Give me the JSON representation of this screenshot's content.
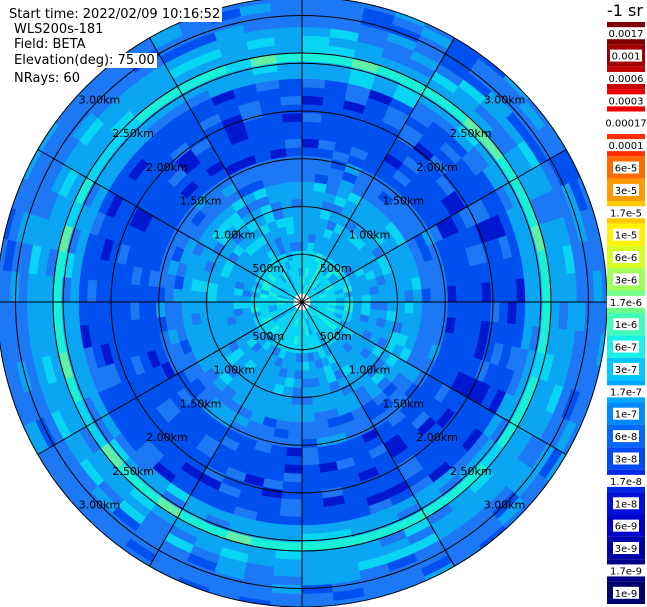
{
  "info": {
    "start_time": "Start time: 2022/02/09 10:16:52",
    "device": "WLS200s-181",
    "field": "Field: BETA",
    "elevation": "Elevation(deg): 75.00",
    "nrays": "NRays: 60"
  },
  "colorbar": {
    "unit": "-1 sr",
    "labels": [
      "0.0017",
      "0.001",
      "0.0006",
      "0.0003",
      "0.00017",
      "0.0001",
      "6e-5",
      "3e-5",
      "1.7e-5",
      "1e-5",
      "6e-6",
      "3e-6",
      "1.7e-6",
      "1e-6",
      "6e-7",
      "3e-7",
      "1.7e-7",
      "1e-7",
      "6e-8",
      "3e-8",
      "1.7e-8",
      "1e-8",
      "6e-9",
      "3e-9",
      "1.7e-9",
      "1e-9"
    ],
    "colors": [
      "#7f0000",
      "#a00000",
      "#c80000",
      "#ee0000",
      "#ffffff",
      "#ff3000",
      "#ff6a00",
      "#ff9a00",
      "#ffc800",
      "#fff200",
      "#d4ff20",
      "#a0ff58",
      "#70ff88",
      "#40ffb8",
      "#18f0e8",
      "#00c8ff",
      "#00a8ff",
      "#0088ff",
      "#0068ff",
      "#0048f8",
      "#0028e8",
      "#0010d8",
      "#0000c8",
      "#0000a8",
      "#000088",
      "#000070"
    ]
  },
  "chart_data": {
    "type": "heatmap",
    "projection": "polar (plan view, scan center at middle)",
    "n_rays": 60,
    "range_rings_km": [
      0.5,
      1.0,
      1.5,
      2.0,
      2.5,
      3.0
    ],
    "range_labels": [
      "500m",
      "1.00km",
      "1.50km",
      "2.00km",
      "2.50km",
      "3.00km"
    ],
    "radial_lines_deg": [
      0,
      30,
      60,
      90,
      120,
      150,
      180,
      210,
      240,
      270,
      300,
      330
    ],
    "field": "BETA",
    "palette": {
      "deep_blue": "#0050f0",
      "mid_blue": "#1c78f4",
      "light_blue": "#0aa6f4",
      "cyan": "#08d4f4",
      "teal": "#18f0d8",
      "green": "#60f0a8",
      "dark_navy": "#0018d0"
    },
    "radial_profile": [
      {
        "range_km": [
          0.0,
          0.5
        ],
        "class": "cyan"
      },
      {
        "range_km": [
          0.5,
          1.0
        ],
        "class": "light_blue"
      },
      {
        "range_km": [
          1.0,
          1.3
        ],
        "class": "light_blue"
      },
      {
        "range_km": [
          1.3,
          1.5
        ],
        "class": "mid_blue"
      },
      {
        "range_km": [
          1.5,
          2.3
        ],
        "class": "deep_blue"
      },
      {
        "range_km": [
          2.3,
          2.5
        ],
        "class": "light_blue"
      },
      {
        "range_km": [
          2.5,
          2.65
        ],
        "class": "teal"
      },
      {
        "range_km": [
          2.65,
          2.9
        ],
        "class": "light_blue"
      },
      {
        "range_km": [
          2.9,
          3.3
        ],
        "class": "mid_blue"
      },
      {
        "range_km": [
          3.3,
          3.6
        ],
        "class": "light_blue"
      }
    ]
  }
}
